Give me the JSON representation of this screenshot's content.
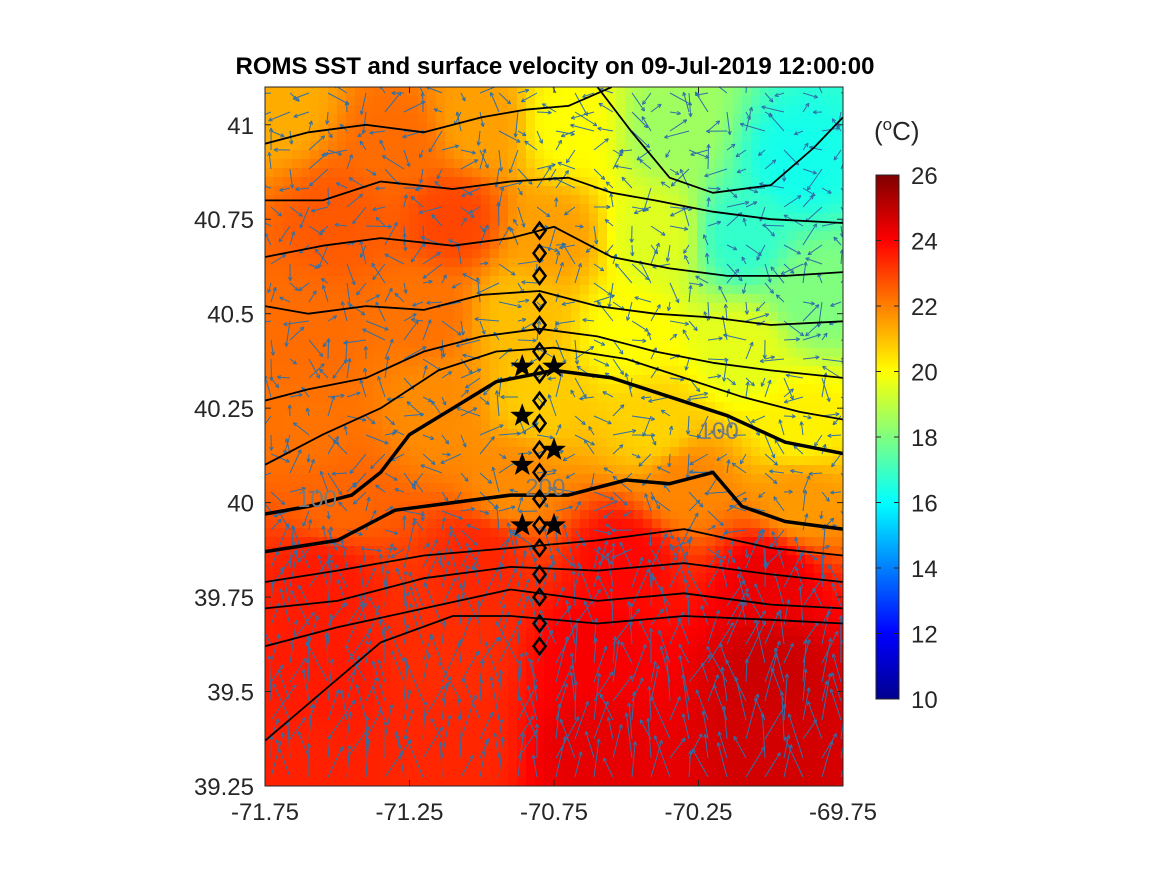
{
  "chart_data": {
    "type": "heatmap",
    "title": "ROMS SST and surface velocity on 09-Jul-2019 12:00:00",
    "xlim": [
      -71.75,
      -69.75
    ],
    "ylim": [
      39.25,
      41.1
    ],
    "x_ticks": [
      -71.75,
      -71.25,
      -70.75,
      -70.25,
      -69.75
    ],
    "x_tick_labels": [
      "-71.75",
      "-71.25",
      "-70.75",
      "-70.25",
      "-69.75"
    ],
    "y_ticks": [
      39.25,
      39.5,
      39.75,
      40.0,
      40.25,
      40.5,
      40.75,
      41.0
    ],
    "y_tick_labels": [
      "39.25",
      "39.5",
      "39.75",
      "40",
      "40.25",
      "40.5",
      "40.75",
      "41"
    ],
    "colorbar": {
      "label": "(oC)",
      "label_base": "(",
      "label_sup": "o",
      "label_unit": "C)",
      "range": [
        10,
        26
      ],
      "ticks": [
        10,
        12,
        14,
        16,
        18,
        20,
        22,
        24,
        26
      ],
      "tick_labels": [
        "10",
        "12",
        "14",
        "16",
        "18",
        "20",
        "22",
        "24",
        "26"
      ],
      "colormap": "jet"
    },
    "sst_field": [
      {
        "lon": -71.7,
        "lat": 41.05,
        "sst": 21.3
      },
      {
        "lon": -71.3,
        "lat": 40.95,
        "sst": 22.3
      },
      {
        "lon": -71.0,
        "lat": 41.0,
        "sst": 21.5
      },
      {
        "lon": -70.7,
        "lat": 41.0,
        "sst": 20.0
      },
      {
        "lon": -70.35,
        "lat": 41.0,
        "sst": 18.5
      },
      {
        "lon": -69.9,
        "lat": 40.9,
        "sst": 16.3
      },
      {
        "lon": -70.1,
        "lat": 40.7,
        "sst": 16.8
      },
      {
        "lon": -71.5,
        "lat": 40.75,
        "sst": 22.6
      },
      {
        "lon": -71.1,
        "lat": 40.75,
        "sst": 22.9
      },
      {
        "lon": -70.75,
        "lat": 40.7,
        "sst": 21.5
      },
      {
        "lon": -70.4,
        "lat": 40.7,
        "sst": 19.5
      },
      {
        "lon": -69.85,
        "lat": 40.55,
        "sst": 18.0
      },
      {
        "lon": -71.6,
        "lat": 40.45,
        "sst": 22.3
      },
      {
        "lon": -71.2,
        "lat": 40.5,
        "sst": 22.2
      },
      {
        "lon": -70.85,
        "lat": 40.5,
        "sst": 21.0
      },
      {
        "lon": -70.5,
        "lat": 40.45,
        "sst": 20.0
      },
      {
        "lon": -70.1,
        "lat": 40.4,
        "sst": 19.6
      },
      {
        "lon": -71.6,
        "lat": 40.2,
        "sst": 22.2
      },
      {
        "lon": -71.15,
        "lat": 40.25,
        "sst": 21.8
      },
      {
        "lon": -70.8,
        "lat": 40.28,
        "sst": 20.8
      },
      {
        "lon": -70.4,
        "lat": 40.2,
        "sst": 20.7
      },
      {
        "lon": -69.9,
        "lat": 40.2,
        "sst": 20.2
      },
      {
        "lon": -71.5,
        "lat": 40.0,
        "sst": 22.4
      },
      {
        "lon": -70.9,
        "lat": 40.05,
        "sst": 21.8
      },
      {
        "lon": -70.3,
        "lat": 40.05,
        "sst": 21.9
      },
      {
        "lon": -69.9,
        "lat": 40.0,
        "sst": 21.6
      },
      {
        "lon": -71.55,
        "lat": 39.8,
        "sst": 23.6
      },
      {
        "lon": -71.0,
        "lat": 39.85,
        "sst": 23.4
      },
      {
        "lon": -70.5,
        "lat": 39.85,
        "sst": 23.9
      },
      {
        "lon": -70.0,
        "lat": 39.8,
        "sst": 24.3
      },
      {
        "lon": -71.55,
        "lat": 39.55,
        "sst": 23.6
      },
      {
        "lon": -71.1,
        "lat": 39.6,
        "sst": 23.3
      },
      {
        "lon": -70.6,
        "lat": 39.6,
        "sst": 24.1
      },
      {
        "lon": -70.0,
        "lat": 39.55,
        "sst": 24.8
      },
      {
        "lon": -71.6,
        "lat": 39.3,
        "sst": 23.5
      },
      {
        "lon": -71.1,
        "lat": 39.35,
        "sst": 23.4
      },
      {
        "lon": -70.6,
        "lat": 39.35,
        "sst": 24.4
      },
      {
        "lon": -70.0,
        "lat": 39.35,
        "sst": 24.7
      }
    ],
    "bathymetry_contours": [
      {
        "level": 100,
        "bold": true,
        "points": [
          [
            -71.75,
            39.97
          ],
          [
            -71.6,
            39.99
          ],
          [
            -71.45,
            40.02
          ],
          [
            -71.35,
            40.08
          ],
          [
            -71.25,
            40.18
          ],
          [
            -71.1,
            40.25
          ],
          [
            -70.95,
            40.32
          ],
          [
            -70.75,
            40.35
          ],
          [
            -70.55,
            40.33
          ],
          [
            -70.35,
            40.28
          ],
          [
            -70.15,
            40.23
          ],
          [
            -69.95,
            40.16
          ],
          [
            -69.75,
            40.13
          ]
        ]
      },
      {
        "level": 200,
        "bold": true,
        "points": [
          [
            -71.75,
            39.87
          ],
          [
            -71.5,
            39.9
          ],
          [
            -71.3,
            39.98
          ],
          [
            -71.1,
            40.0
          ],
          [
            -70.9,
            40.02
          ],
          [
            -70.7,
            40.02
          ],
          [
            -70.5,
            40.06
          ],
          [
            -70.35,
            40.05
          ],
          [
            -70.2,
            40.08
          ],
          [
            -70.1,
            39.99
          ],
          [
            -69.95,
            39.95
          ],
          [
            -69.75,
            39.93
          ]
        ]
      },
      {
        "level": null,
        "bold": false,
        "points": [
          [
            -71.75,
            39.79
          ],
          [
            -71.5,
            39.82
          ],
          [
            -71.2,
            39.86
          ],
          [
            -70.9,
            39.88
          ],
          [
            -70.6,
            39.9
          ],
          [
            -70.3,
            39.93
          ],
          [
            -70.0,
            39.88
          ],
          [
            -69.75,
            39.86
          ]
        ]
      },
      {
        "level": null,
        "bold": false,
        "points": [
          [
            -71.75,
            39.72
          ],
          [
            -71.5,
            39.74
          ],
          [
            -71.2,
            39.8
          ],
          [
            -70.9,
            39.83
          ],
          [
            -70.6,
            39.82
          ],
          [
            -70.3,
            39.84
          ],
          [
            -70.0,
            39.81
          ],
          [
            -69.75,
            39.79
          ]
        ]
      },
      {
        "level": null,
        "bold": false,
        "points": [
          [
            -71.75,
            39.62
          ],
          [
            -71.5,
            39.67
          ],
          [
            -71.2,
            39.72
          ],
          [
            -70.9,
            39.77
          ],
          [
            -70.6,
            39.74
          ],
          [
            -70.3,
            39.76
          ],
          [
            -70.0,
            39.73
          ],
          [
            -69.75,
            39.72
          ]
        ]
      },
      {
        "level": null,
        "bold": false,
        "points": [
          [
            -71.75,
            39.37
          ],
          [
            -71.55,
            39.5
          ],
          [
            -71.35,
            39.63
          ],
          [
            -71.1,
            39.7
          ],
          [
            -70.9,
            39.7
          ],
          [
            -70.6,
            39.68
          ],
          [
            -70.3,
            39.7
          ],
          [
            -70.0,
            39.69
          ],
          [
            -69.75,
            39.68
          ]
        ]
      },
      {
        "level": null,
        "bold": false,
        "points": [
          [
            -71.75,
            40.1
          ],
          [
            -71.55,
            40.18
          ],
          [
            -71.35,
            40.25
          ],
          [
            -71.15,
            40.35
          ],
          [
            -70.95,
            40.4
          ],
          [
            -70.75,
            40.41
          ],
          [
            -70.5,
            40.38
          ],
          [
            -70.3,
            40.33
          ],
          [
            -70.1,
            40.28
          ],
          [
            -69.9,
            40.24
          ],
          [
            -69.75,
            40.22
          ]
        ]
      },
      {
        "level": null,
        "bold": false,
        "points": [
          [
            -71.75,
            40.27
          ],
          [
            -71.6,
            40.3
          ],
          [
            -71.4,
            40.33
          ],
          [
            -71.2,
            40.4
          ],
          [
            -71.0,
            40.44
          ],
          [
            -70.8,
            40.46
          ],
          [
            -70.6,
            40.44
          ],
          [
            -70.4,
            40.4
          ],
          [
            -70.2,
            40.37
          ],
          [
            -70.0,
            40.35
          ],
          [
            -69.75,
            40.33
          ]
        ]
      },
      {
        "level": null,
        "bold": false,
        "points": [
          [
            -71.75,
            40.52
          ],
          [
            -71.6,
            40.5
          ],
          [
            -71.4,
            40.52
          ],
          [
            -71.2,
            40.51
          ],
          [
            -71.0,
            40.55
          ],
          [
            -70.8,
            40.56
          ],
          [
            -70.6,
            40.52
          ],
          [
            -70.4,
            40.5
          ],
          [
            -70.2,
            40.49
          ],
          [
            -70.0,
            40.47
          ],
          [
            -69.75,
            40.48
          ]
        ]
      },
      {
        "level": null,
        "bold": false,
        "points": [
          [
            -71.75,
            40.65
          ],
          [
            -71.55,
            40.68
          ],
          [
            -71.35,
            40.7
          ],
          [
            -71.1,
            40.68
          ],
          [
            -70.9,
            40.7
          ],
          [
            -70.75,
            40.73
          ],
          [
            -70.55,
            40.65
          ],
          [
            -70.35,
            40.62
          ],
          [
            -70.15,
            40.6
          ],
          [
            -69.95,
            40.6
          ],
          [
            -69.75,
            40.61
          ]
        ]
      },
      {
        "level": null,
        "bold": false,
        "points": [
          [
            -71.75,
            40.8
          ],
          [
            -71.55,
            40.8
          ],
          [
            -71.35,
            40.85
          ],
          [
            -71.1,
            40.83
          ],
          [
            -70.9,
            40.85
          ],
          [
            -70.7,
            40.86
          ],
          [
            -70.55,
            40.82
          ],
          [
            -70.4,
            40.8
          ],
          [
            -70.2,
            40.77
          ],
          [
            -70.0,
            40.75
          ],
          [
            -69.75,
            40.74
          ]
        ]
      },
      {
        "level": null,
        "bold": false,
        "points": [
          [
            -71.75,
            40.95
          ],
          [
            -71.6,
            40.98
          ],
          [
            -71.4,
            41.0
          ],
          [
            -71.2,
            40.98
          ],
          [
            -71.0,
            41.02
          ],
          [
            -70.85,
            41.04
          ],
          [
            -70.7,
            41.05
          ],
          [
            -70.55,
            41.1
          ]
        ]
      },
      {
        "level": null,
        "bold": false,
        "points": [
          [
            -70.6,
            41.1
          ],
          [
            -70.48,
            40.98
          ],
          [
            -70.35,
            40.86
          ],
          [
            -70.2,
            40.82
          ],
          [
            -70.0,
            40.84
          ],
          [
            -69.85,
            40.94
          ],
          [
            -69.75,
            41.02
          ]
        ]
      }
    ],
    "contour_labels": [
      {
        "text": "100",
        "lon": -71.57,
        "lat": 40.01
      },
      {
        "text": "100",
        "lon": -70.18,
        "lat": 40.19
      },
      {
        "text": "200",
        "lon": -70.78,
        "lat": 40.04
      }
    ],
    "diamond_stations": {
      "lon": -70.8,
      "lat": [
        40.72,
        40.66,
        40.6,
        40.53,
        40.47,
        40.4,
        40.34,
        40.27,
        40.21,
        40.14,
        40.08,
        40.01,
        39.94,
        39.88,
        39.81,
        39.75,
        39.68,
        39.62
      ]
    },
    "star_stations": [
      {
        "lon": -70.86,
        "lat": 40.36
      },
      {
        "lon": -70.75,
        "lat": 40.36
      },
      {
        "lon": -70.86,
        "lat": 40.23
      },
      {
        "lon": -70.75,
        "lat": 40.14
      },
      {
        "lon": -70.86,
        "lat": 40.1
      },
      {
        "lon": -70.86,
        "lat": 39.94
      },
      {
        "lon": -70.75,
        "lat": 39.94
      }
    ],
    "velocity_vectors": "quiver field of surface currents drawn as blue arrows",
    "colors": {
      "vector": "#2f6fa8",
      "contour": "#000000",
      "contour_label": "#7a7a7a"
    }
  }
}
